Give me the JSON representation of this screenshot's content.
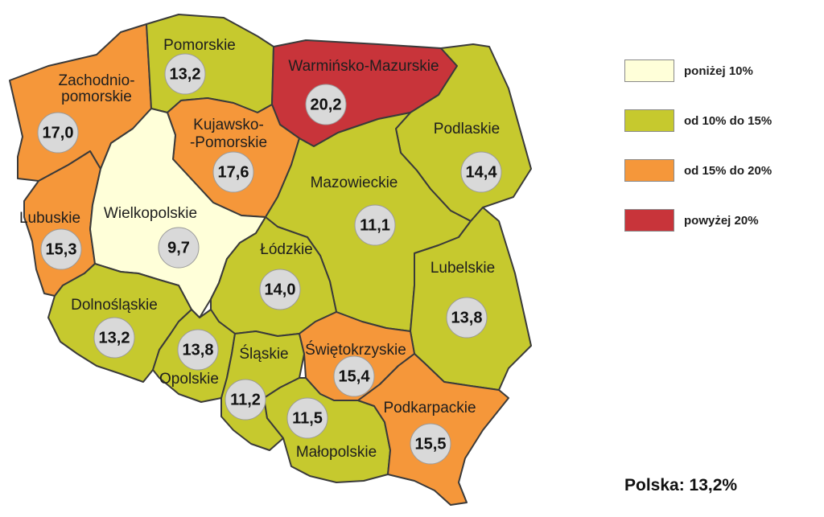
{
  "legend": {
    "items": [
      {
        "label": "poniżej 10%",
        "color": "#ffffd9"
      },
      {
        "label": "od 10% do 15%",
        "color": "#c6c92e"
      },
      {
        "label": "od 15% do 20%",
        "color": "#f5973a"
      },
      {
        "label": "powyżej 20%",
        "color": "#c8343a"
      }
    ]
  },
  "summary": {
    "label": "Polska:",
    "value": "13,2%"
  },
  "regions": [
    {
      "id": "zachodniopomorskie",
      "name_lines": [
        "Zachodnio-",
        "pomorskie"
      ],
      "value": "17,0",
      "value_num": 17.0
    },
    {
      "id": "pomorskie",
      "name_lines": [
        "Pomorskie"
      ],
      "value": "13,2",
      "value_num": 13.2
    },
    {
      "id": "warminsko-mazurskie",
      "name_lines": [
        "Warmińsko-Mazurskie"
      ],
      "value": "20,2",
      "value_num": 20.2
    },
    {
      "id": "podlaskie",
      "name_lines": [
        "Podlaskie"
      ],
      "value": "14,4",
      "value_num": 14.4
    },
    {
      "id": "kujawsko-pomorskie",
      "name_lines": [
        "Kujawsko-",
        "-Pomorskie"
      ],
      "value": "17,6",
      "value_num": 17.6
    },
    {
      "id": "lubuskie",
      "name_lines": [
        "Lubuskie"
      ],
      "value": "15,3",
      "value_num": 15.3
    },
    {
      "id": "wielkopolskie",
      "name_lines": [
        "Wielkopolskie"
      ],
      "value": "9,7",
      "value_num": 9.7
    },
    {
      "id": "mazowieckie",
      "name_lines": [
        "Mazowieckie"
      ],
      "value": "11,1",
      "value_num": 11.1
    },
    {
      "id": "lodzkie",
      "name_lines": [
        "Łódzkie"
      ],
      "value": "14,0",
      "value_num": 14.0
    },
    {
      "id": "lubelskie",
      "name_lines": [
        "Lubelskie"
      ],
      "value": "13,8",
      "value_num": 13.8
    },
    {
      "id": "dolnoslaskie",
      "name_lines": [
        "Dolnośląskie"
      ],
      "value": "13,2",
      "value_num": 13.2
    },
    {
      "id": "opolskie",
      "name_lines": [
        "Opolskie"
      ],
      "value": "13,8",
      "value_num": 13.8
    },
    {
      "id": "slaskie",
      "name_lines": [
        "Śląskie"
      ],
      "value": "11,2",
      "value_num": 11.2
    },
    {
      "id": "swietokrzyskie",
      "name_lines": [
        "Świętokrzyskie"
      ],
      "value": "15,4",
      "value_num": 15.4
    },
    {
      "id": "malopolskie",
      "name_lines": [
        "Małopolskie"
      ],
      "value": "11,5",
      "value_num": 11.5
    },
    {
      "id": "podkarpackie",
      "name_lines": [
        "Podkarpackie"
      ],
      "value": "15,5",
      "value_num": 15.5
    }
  ]
}
